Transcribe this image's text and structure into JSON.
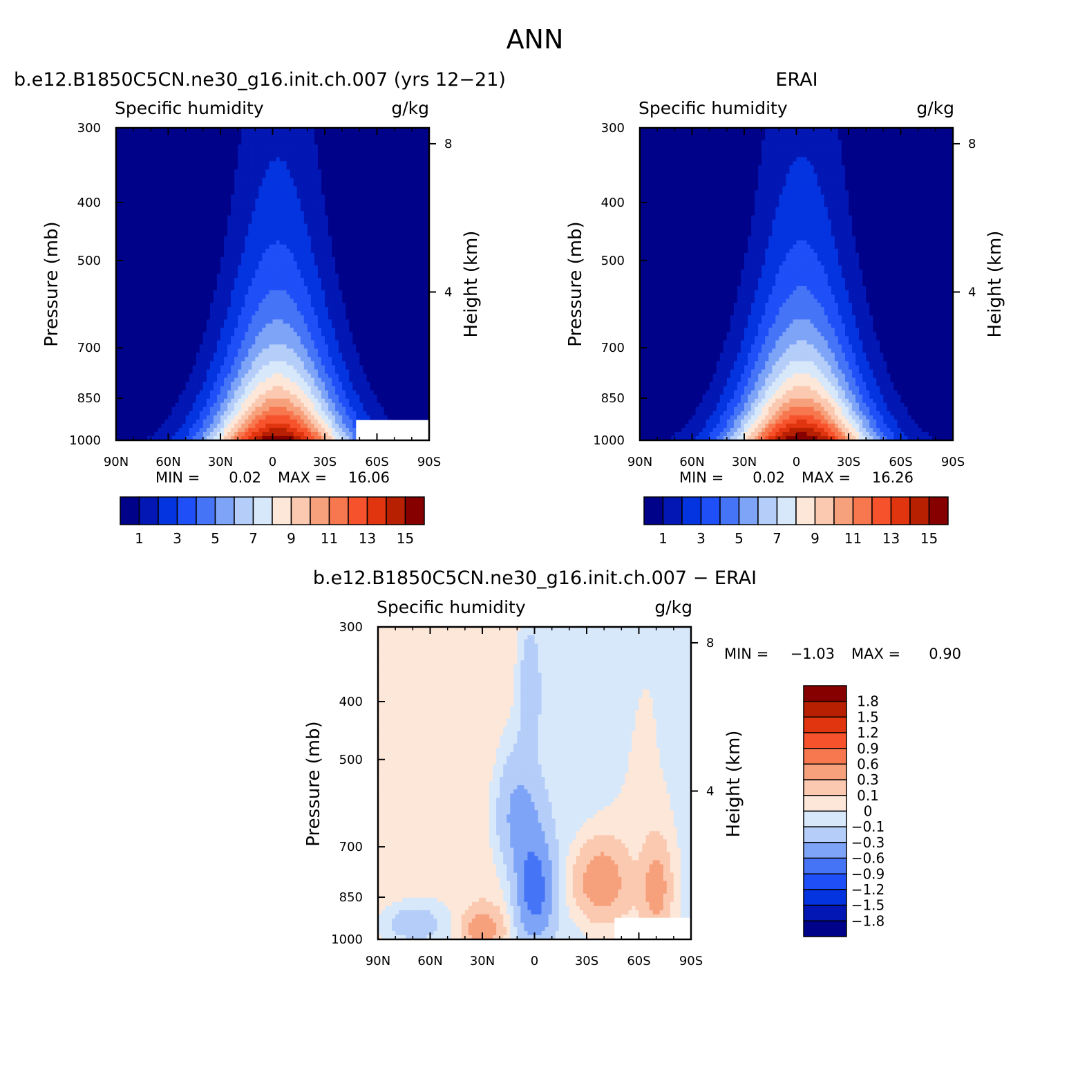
{
  "page_title": "ANN",
  "panels": [
    {
      "id": "model",
      "case_title": "b.e12.B1850C5CN.ne30_g16.init.ch.007 (yrs 12-21)",
      "left_label": "Specific humidity",
      "right_label": "g/kg",
      "ylabel": "Pressure (mb)",
      "ylabel_right": "Height (km)",
      "stats": {
        "min_label": "MIN =",
        "min_value": "0.02",
        "max_label": "MAX =",
        "max_value": "16.06"
      }
    },
    {
      "id": "obs",
      "case_title": "ERAI",
      "left_label": "Specific humidity",
      "right_label": "g/kg",
      "ylabel": "Pressure (mb)",
      "ylabel_right": "Height (km)",
      "stats": {
        "min_label": "MIN =",
        "min_value": "0.02",
        "max_label": "MAX =",
        "max_value": "16.26"
      }
    },
    {
      "id": "diff",
      "case_title": "b.e12.B1850C5CN.ne30_g16.init.ch.007 - ERAI",
      "left_label": "Specific humidity",
      "right_label": "g/kg",
      "ylabel": "Pressure (mb)",
      "ylabel_right": "Height (km)",
      "stats": {
        "min_label": "MIN =",
        "min_value": "-1.03",
        "max_label": "MAX =",
        "max_value": "0.90"
      }
    }
  ],
  "chart_data": [
    {
      "type": "heatmap",
      "panel": "model",
      "x_ticks": [
        "90N",
        "60N",
        "30N",
        "0",
        "30S",
        "60S",
        "90S"
      ],
      "x_values": [
        90,
        60,
        30,
        0,
        -30,
        -60,
        -90
      ],
      "xlim": [
        90,
        -90
      ],
      "y_ticks": [
        300,
        400,
        500,
        700,
        850,
        1000
      ],
      "ylim": [
        1000,
        300
      ],
      "y_scale": "log",
      "y_right_ticks": [
        8,
        4
      ],
      "peak_lat": -3,
      "peak_value": 16.06,
      "min_value": 0.02,
      "masked_region": {
        "lat_from": -48,
        "lat_to": -90,
        "p_from": 925,
        "p_to": 1000
      },
      "colorbar": {
        "tick_labels": [
          "1",
          "3",
          "5",
          "7",
          "9",
          "11",
          "13",
          "15"
        ],
        "levels": [
          1,
          2,
          3,
          4,
          5,
          6,
          7,
          8,
          9,
          10,
          11,
          12,
          13,
          14,
          15
        ],
        "colors": [
          "#00038a",
          "#0217b4",
          "#0434e0",
          "#1f4ff7",
          "#4674f7",
          "#7ea4f7",
          "#b4cdf9",
          "#d8e8fb",
          "#fde7d8",
          "#fbc8b0",
          "#f7a07c",
          "#f7774f",
          "#f6532c",
          "#e0350e",
          "#b82002",
          "#870000"
        ]
      }
    },
    {
      "type": "heatmap",
      "panel": "obs",
      "x_ticks": [
        "90N",
        "60N",
        "30N",
        "0",
        "30S",
        "60S",
        "90S"
      ],
      "x_values": [
        90,
        60,
        30,
        0,
        -30,
        -60,
        -90
      ],
      "xlim": [
        90,
        -90
      ],
      "y_ticks": [
        300,
        400,
        500,
        700,
        850,
        1000
      ],
      "ylim": [
        1000,
        300
      ],
      "y_scale": "log",
      "y_right_ticks": [
        8,
        4
      ],
      "peak_lat": -3,
      "peak_value": 16.26,
      "min_value": 0.02,
      "colorbar": {
        "tick_labels": [
          "1",
          "3",
          "5",
          "7",
          "9",
          "11",
          "13",
          "15"
        ],
        "levels": [
          1,
          2,
          3,
          4,
          5,
          6,
          7,
          8,
          9,
          10,
          11,
          12,
          13,
          14,
          15
        ],
        "colors": [
          "#00038a",
          "#0217b4",
          "#0434e0",
          "#1f4ff7",
          "#4674f7",
          "#7ea4f7",
          "#b4cdf9",
          "#d8e8fb",
          "#fde7d8",
          "#fbc8b0",
          "#f7a07c",
          "#f7774f",
          "#f6532c",
          "#e0350e",
          "#b82002",
          "#870000"
        ]
      }
    },
    {
      "type": "heatmap",
      "panel": "diff",
      "x_ticks": [
        "90N",
        "60N",
        "30N",
        "0",
        "30S",
        "60S",
        "90S"
      ],
      "x_values": [
        90,
        60,
        30,
        0,
        -30,
        -60,
        -90
      ],
      "xlim": [
        90,
        -90
      ],
      "y_ticks": [
        300,
        400,
        500,
        700,
        850,
        1000
      ],
      "ylim": [
        1000,
        300
      ],
      "y_scale": "log",
      "y_right_ticks": [
        8,
        4
      ],
      "min_value": -1.03,
      "max_value": 0.9,
      "masked_region": {
        "lat_from": -46,
        "lat_to": -90,
        "p_from": 920,
        "p_to": 1000
      },
      "colorbar": {
        "tick_labels": [
          "1.8",
          "1.5",
          "1.2",
          "0.9",
          "0.6",
          "0.3",
          "0.1",
          "0",
          "-0.1",
          "-0.3",
          "-0.6",
          "-0.9",
          "-1.2",
          "-1.5",
          "-1.8"
        ],
        "levels": [
          1.8,
          1.5,
          1.2,
          0.9,
          0.6,
          0.3,
          0.1,
          0,
          -0.1,
          -0.3,
          -0.6,
          -0.9,
          -1.2,
          -1.5,
          -1.8
        ],
        "colors": [
          "#870000",
          "#b82002",
          "#e0350e",
          "#f6532c",
          "#f7774f",
          "#f7a07c",
          "#fbc8b0",
          "#fde7d8",
          "#d8e8fb",
          "#b4cdf9",
          "#7ea4f7",
          "#4674f7",
          "#1f4ff7",
          "#0434e0",
          "#0217b4",
          "#00038a"
        ]
      }
    }
  ]
}
